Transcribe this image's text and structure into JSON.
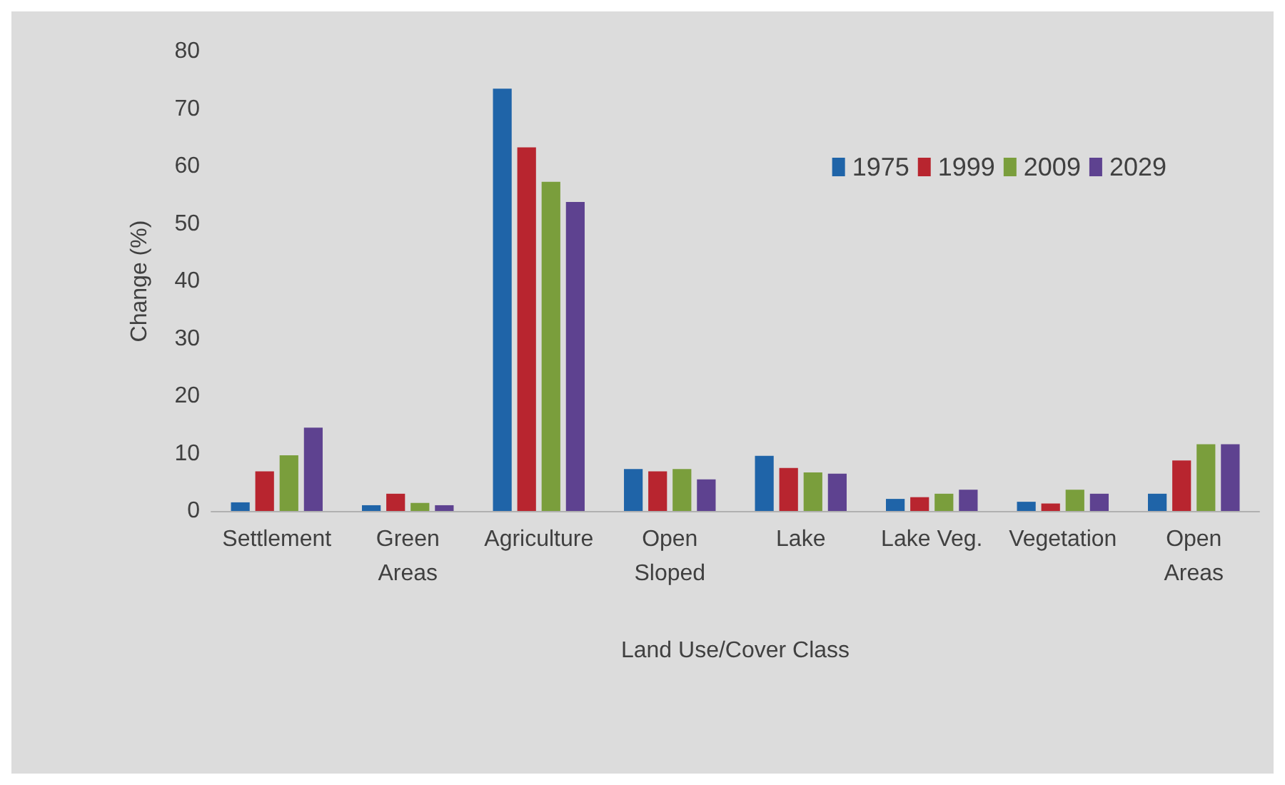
{
  "chart_data": {
    "type": "bar",
    "xlabel": "Land Use/Cover Class",
    "ylabel": "Change (%)",
    "categories": [
      "Settlement",
      "Green\nAreas",
      "Agriculture",
      "Open\nSloped",
      "Lake",
      "Lake Veg.",
      "Vegetation",
      "Open\nAreas"
    ],
    "series": [
      {
        "name": "1975",
        "color": "#1f64a8",
        "values": [
          1.5,
          1.0,
          73.5,
          7.3,
          9.6,
          2.1,
          1.6,
          3.0
        ]
      },
      {
        "name": "1999",
        "color": "#b8252f",
        "values": [
          6.9,
          3.0,
          63.3,
          6.9,
          7.5,
          2.4,
          1.3,
          8.8
        ]
      },
      {
        "name": "2009",
        "color": "#7a9e3c",
        "values": [
          9.7,
          1.4,
          57.3,
          7.3,
          6.7,
          3.0,
          3.7,
          11.6
        ]
      },
      {
        "name": "2029",
        "color": "#5e4290",
        "values": [
          14.5,
          1.0,
          53.8,
          5.5,
          6.5,
          3.7,
          3.0,
          11.6
        ]
      }
    ],
    "ylim": [
      0,
      80
    ],
    "yticks": [
      0,
      10,
      20,
      30,
      40,
      50,
      60,
      70,
      80
    ],
    "grid": false,
    "legend": "top right"
  }
}
